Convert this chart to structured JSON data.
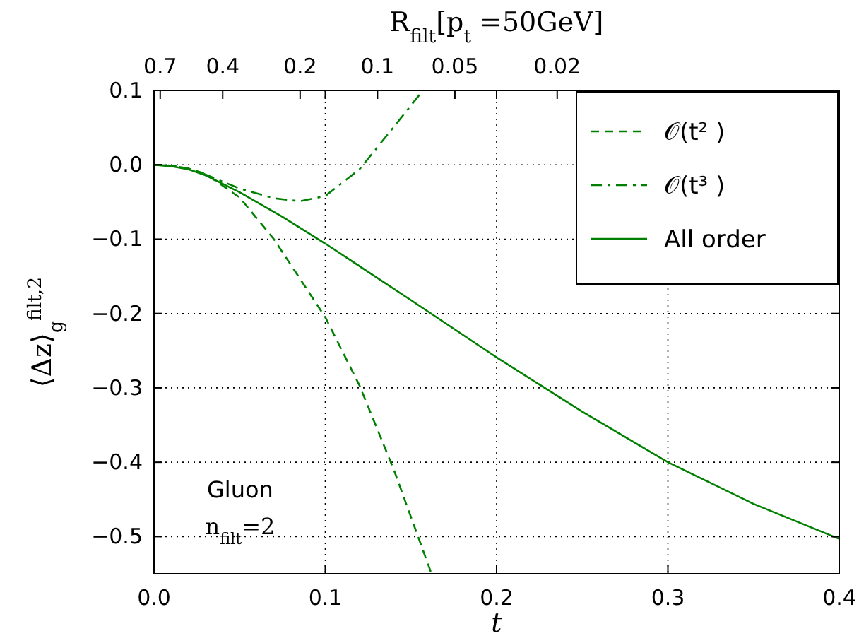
{
  "chart_data": {
    "type": "line",
    "xlabel": "t",
    "ylabel": "⟨Δz⟩$_{g}$$^{filt,2}$",
    "x2label": "R$_{filt}$[p$_{t}$ =50GeV]",
    "xlim": [
      0,
      0.4
    ],
    "ylim": [
      -0.55,
      0.1
    ],
    "xticks": [
      {
        "value": 0,
        "label": "0.0"
      },
      0.1,
      0.2,
      0.3,
      0.4
    ],
    "yticks": [
      0.1,
      {
        "value": 0,
        "label": "0.0"
      },
      {
        "value": -0.1,
        "label": "−0.1"
      },
      {
        "value": -0.2,
        "label": "−0.2"
      },
      {
        "value": -0.3,
        "label": "−0.3"
      },
      {
        "value": -0.4,
        "label": "−0.4"
      },
      {
        "value": -0.5,
        "label": "−0.5"
      }
    ],
    "x2lim": [
      0.74,
      0.0016
    ],
    "log": "x2",
    "x2ticks": [
      0.7,
      0.4,
      0.2,
      0.1,
      0.05,
      0.02
    ],
    "grid": true,
    "legend": "top right",
    "marker": "none",
    "series": [
      {
        "name": "𝒪(t² )",
        "color": "#008000",
        "line_style": "dashed",
        "x": [
          0,
          0.01,
          0.02,
          0.03,
          0.05,
          0.07,
          0.1,
          0.12,
          0.14,
          0.162
        ],
        "values": [
          0,
          -0.001,
          -0.005,
          -0.012,
          -0.044,
          -0.1,
          -0.205,
          -0.297,
          -0.41,
          -0.55
        ]
      },
      {
        "name": "𝒪(t³ )",
        "color": "#008000",
        "line_style": "dashdot",
        "x": [
          0,
          0.01,
          0.02,
          0.03,
          0.05,
          0.07,
          0.085,
          0.1,
          0.12,
          0.14,
          0.157
        ],
        "values": [
          0,
          -0.001,
          -0.005,
          -0.013,
          -0.032,
          -0.045,
          -0.049,
          -0.042,
          -0.006,
          0.051,
          0.1
        ]
      },
      {
        "name": "All order",
        "color": "#008000",
        "line_style": "solid",
        "x": [
          0,
          0.01,
          0.02,
          0.03,
          0.05,
          0.075,
          0.1,
          0.15,
          0.2,
          0.25,
          0.3,
          0.35,
          0.4
        ],
        "values": [
          0,
          -0.002,
          -0.006,
          -0.014,
          -0.037,
          -0.07,
          -0.106,
          -0.182,
          -0.259,
          -0.332,
          -0.4,
          -0.456,
          -0.503
        ]
      }
    ],
    "annotations": [
      "Gluon",
      "n$_{filt}$=2"
    ]
  }
}
